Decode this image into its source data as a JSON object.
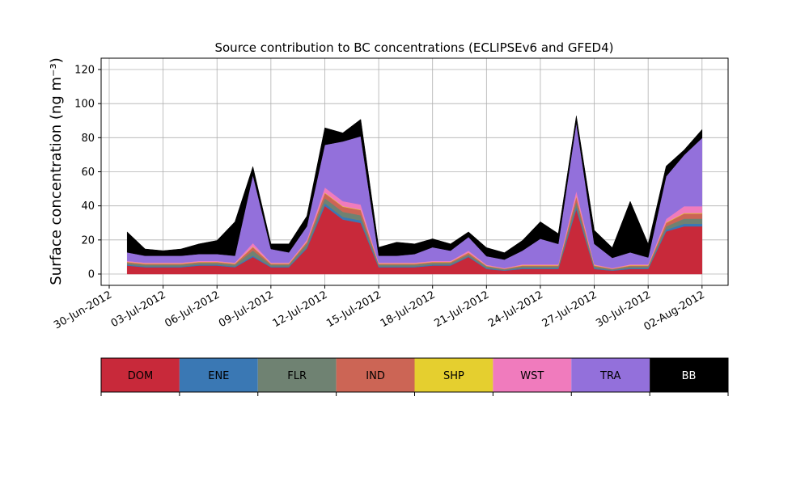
{
  "chart_data": {
    "type": "area",
    "stacked": true,
    "title": "Source contribution to BC concentrations (ECLIPSEv6 and GFED4)",
    "ylabel": "Surface concentration (ng m⁻³)",
    "xlabel": "",
    "ylim": [
      0,
      120
    ],
    "xlim": [
      "2012-06-30",
      "2012-08-03"
    ],
    "grid": true,
    "x_ticks": [
      "30-Jun-2012",
      "03-Jul-2012",
      "06-Jul-2012",
      "09-Jul-2012",
      "12-Jul-2012",
      "15-Jul-2012",
      "18-Jul-2012",
      "21-Jul-2012",
      "24-Jul-2012",
      "27-Jul-2012",
      "30-Jul-2012",
      "02-Aug-2012"
    ],
    "y_ticks": [
      "0",
      "20",
      "40",
      "60",
      "80",
      "100",
      "120"
    ],
    "legend_position": "below",
    "x": [
      "2012-07-01",
      "2012-07-02",
      "2012-07-03",
      "2012-07-04",
      "2012-07-05",
      "2012-07-06",
      "2012-07-07",
      "2012-07-08",
      "2012-07-09",
      "2012-07-10",
      "2012-07-11",
      "2012-07-12",
      "2012-07-13",
      "2012-07-14",
      "2012-07-15",
      "2012-07-16",
      "2012-07-17",
      "2012-07-18",
      "2012-07-19",
      "2012-07-20",
      "2012-07-21",
      "2012-07-22",
      "2012-07-23",
      "2012-07-24",
      "2012-07-25",
      "2012-07-26",
      "2012-07-27",
      "2012-07-28",
      "2012-07-29",
      "2012-07-30",
      "2012-07-31",
      "2012-08-01",
      "2012-08-02"
    ],
    "series": [
      {
        "name": "DOM",
        "color": "#c8293a",
        "values": [
          5,
          4,
          4,
          4,
          5,
          5,
          4,
          10,
          4,
          4,
          15,
          40,
          32,
          30,
          4,
          4,
          4,
          5,
          5,
          10,
          3,
          2,
          3,
          3,
          3,
          38,
          3,
          2,
          3,
          3,
          25,
          28,
          28
        ]
      },
      {
        "name": "ENE",
        "color": "#3a78b4",
        "values": [
          0.5,
          0.5,
          0.5,
          0.5,
          0.5,
          0.5,
          0.5,
          0.8,
          0.5,
          0.5,
          0.8,
          1.5,
          1.5,
          1.5,
          0.5,
          0.5,
          0.5,
          0.5,
          0.5,
          0.5,
          0.5,
          0.3,
          0.5,
          0.5,
          0.5,
          1.5,
          0.5,
          0.3,
          0.5,
          0.5,
          1,
          1.5,
          1.5
        ]
      },
      {
        "name": "FLR",
        "color": "#6f8272",
        "values": [
          1,
          1,
          1,
          1,
          1,
          1,
          1,
          3,
          1,
          1,
          2,
          3,
          3,
          3,
          1,
          1,
          1,
          1,
          1,
          1,
          1,
          0.5,
          1,
          1,
          1,
          3,
          1,
          0.5,
          1,
          1,
          2,
          3,
          3
        ]
      },
      {
        "name": "IND",
        "color": "#cc6555",
        "values": [
          0.5,
          0.5,
          0.5,
          0.5,
          0.5,
          0.5,
          0.5,
          2,
          0.5,
          0.5,
          1,
          3,
          3,
          3,
          0.5,
          0.5,
          0.5,
          0.5,
          0.5,
          1,
          0.3,
          0.3,
          0.5,
          0.5,
          0.5,
          3,
          0.5,
          0.3,
          0.5,
          0.5,
          2,
          3,
          3
        ]
      },
      {
        "name": "SHP",
        "color": "#e5cf2f",
        "values": [
          0.2,
          0.2,
          0.2,
          0.2,
          0.2,
          0.2,
          0.2,
          0.3,
          0.2,
          0.2,
          0.2,
          0.3,
          0.3,
          0.3,
          0.2,
          0.2,
          0.2,
          0.2,
          0.2,
          0.2,
          0.2,
          0.1,
          0.2,
          0.2,
          0.2,
          0.3,
          0.2,
          0.1,
          0.2,
          0.2,
          0.3,
          0.3,
          0.3
        ]
      },
      {
        "name": "WST",
        "color": "#f07bbd",
        "values": [
          0.5,
          0.5,
          0.5,
          0.5,
          0.5,
          0.5,
          0.5,
          2,
          0.5,
          0.5,
          1,
          3,
          3,
          3,
          0.5,
          0.5,
          0.5,
          0.5,
          0.5,
          1,
          0.5,
          0.3,
          0.5,
          0.5,
          0.5,
          3,
          0.5,
          0.3,
          0.5,
          0.5,
          2,
          4,
          4
        ]
      },
      {
        "name": "TRA",
        "color": "#9370db",
        "values": [
          5,
          4,
          4,
          4,
          4,
          4,
          4,
          40,
          8,
          6,
          8,
          25,
          35,
          40,
          4,
          4,
          5,
          8,
          6,
          8,
          5,
          5,
          8,
          15,
          12,
          40,
          12,
          6,
          7,
          4,
          25,
          30,
          40
        ]
      },
      {
        "name": "BB",
        "color": "#000000",
        "values": [
          12,
          4,
          3,
          4,
          6,
          8,
          20,
          5,
          3,
          5,
          6,
          10,
          5,
          10,
          5,
          8,
          6,
          5,
          4,
          3,
          5,
          4,
          6,
          10,
          6,
          4,
          8,
          6,
          30,
          8,
          6,
          3,
          5
        ]
      }
    ]
  },
  "legend": {
    "items": [
      {
        "name": "DOM",
        "color": "#c8293a",
        "text_color": "#000000"
      },
      {
        "name": "ENE",
        "color": "#3a78b4",
        "text_color": "#000000"
      },
      {
        "name": "FLR",
        "color": "#6f8272",
        "text_color": "#000000"
      },
      {
        "name": "IND",
        "color": "#cc6555",
        "text_color": "#000000"
      },
      {
        "name": "SHP",
        "color": "#e5cf2f",
        "text_color": "#000000"
      },
      {
        "name": "WST",
        "color": "#f07bbd",
        "text_color": "#000000"
      },
      {
        "name": "TRA",
        "color": "#9370db",
        "text_color": "#000000"
      },
      {
        "name": "BB",
        "color": "#000000",
        "text_color": "#ffffff"
      }
    ]
  }
}
